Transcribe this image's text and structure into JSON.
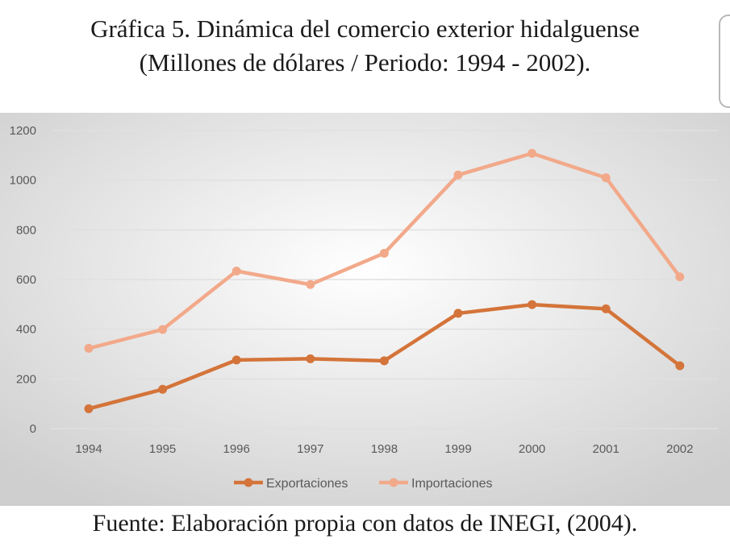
{
  "title": {
    "line1": "Gráfica 5.  Dinámica del comercio exterior hidalguense",
    "line2": "(Millones de dólares / Periodo: 1994 - 2002)."
  },
  "source": "Fuente: Elaboración propia con datos de INEGI, (2004).",
  "colors": {
    "exportaciones": "#d4743a",
    "importaciones": "#f2a98a",
    "gridline": "#e0e0e0",
    "background_center": "#ffffff",
    "background_edge": "#cfcfcf"
  },
  "chart_data": {
    "type": "line",
    "title": "Gráfica 5.  Dinámica del comercio exterior hidalguense",
    "subtitle": "(Millones de dólares / Periodo: 1994 - 2002).",
    "xlabel": "",
    "ylabel": "",
    "x": [
      "1994",
      "1995",
      "1996",
      "1997",
      "1998",
      "1999",
      "2000",
      "2001",
      "2002"
    ],
    "yticks": [
      "0",
      "200",
      "400",
      "600",
      "800",
      "1000",
      "1200"
    ],
    "ylim": [
      0,
      1200
    ],
    "grid": true,
    "legend_position": "bottom",
    "series": [
      {
        "name": "Exportaciones",
        "values": [
          80,
          158,
          276,
          281,
          273,
          464,
          499,
          482,
          253
        ]
      },
      {
        "name": "Importaciones",
        "values": [
          323,
          399,
          634,
          580,
          706,
          1021,
          1108,
          1010,
          611
        ]
      }
    ]
  }
}
